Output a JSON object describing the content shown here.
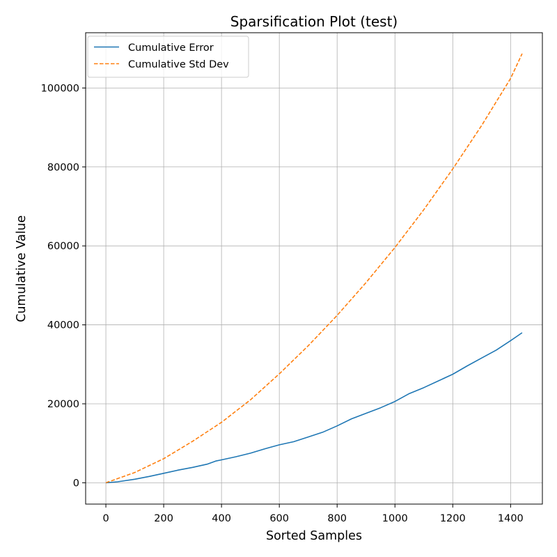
{
  "chart_data": {
    "type": "line",
    "title": "Sparsification Plot (test)",
    "xlabel": "Sorted Samples",
    "ylabel": "Cumulative Value",
    "xlim": [
      -70,
      1510
    ],
    "ylim": [
      -5400,
      114000
    ],
    "xticks": [
      0,
      200,
      400,
      600,
      800,
      1000,
      1200,
      1400
    ],
    "yticks": [
      0,
      20000,
      40000,
      60000,
      80000,
      100000
    ],
    "grid": true,
    "legend_position": "top-left",
    "series": [
      {
        "name": "Cumulative Error",
        "color": "#1f77b4",
        "style": "solid",
        "x": [
          0,
          40,
          100,
          150,
          200,
          250,
          300,
          350,
          380,
          400,
          450,
          500,
          550,
          600,
          650,
          700,
          750,
          800,
          850,
          900,
          950,
          1000,
          1050,
          1100,
          1150,
          1200,
          1250,
          1300,
          1350,
          1400,
          1420,
          1440
        ],
        "y": [
          0,
          250,
          900,
          1600,
          2400,
          3200,
          3900,
          4700,
          5500,
          5800,
          6600,
          7500,
          8600,
          9600,
          10400,
          11600,
          12800,
          14400,
          16200,
          17600,
          19000,
          20600,
          22600,
          24100,
          25800,
          27500,
          29600,
          31600,
          33600,
          36000,
          37000,
          38000
        ]
      },
      {
        "name": "Cumulative Std Dev",
        "color": "#ff7f0e",
        "style": "dashed",
        "x": [
          0,
          100,
          200,
          300,
          400,
          500,
          600,
          700,
          800,
          900,
          1000,
          1100,
          1200,
          1300,
          1400,
          1440
        ],
        "y": [
          0,
          2600,
          6100,
          10500,
          15300,
          21000,
          27600,
          34700,
          42400,
          50700,
          59600,
          69200,
          79500,
          90500,
          102400,
          108700
        ]
      }
    ]
  }
}
